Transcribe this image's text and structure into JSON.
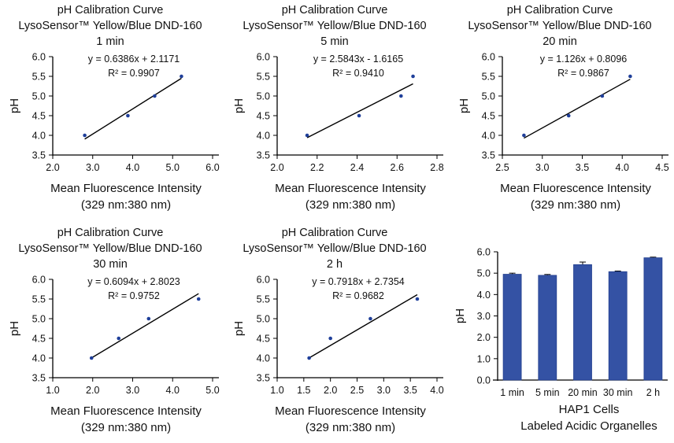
{
  "colors": {
    "point": "#1f3f9a",
    "bar": "#3452a4",
    "bar_edge": "#24408f",
    "line": "#000000"
  },
  "chart_data": [
    {
      "type": "scatter",
      "title": [
        "pH Calibration Curve",
        "LysoSensor™ Yellow/Blue DND-160",
        "1 min"
      ],
      "xlabel": [
        "Mean Fluorescence Intensity",
        "(329 nm:380 nm)"
      ],
      "ylabel": "pH",
      "xlim": [
        2.0,
        6.0
      ],
      "xticks": [
        "2.0",
        "3.0",
        "4.0",
        "5.0",
        "6.0"
      ],
      "ylim": [
        3.5,
        6.0
      ],
      "yticks": [
        "3.5",
        "4.0",
        "4.5",
        "5.0",
        "5.5",
        "6.0"
      ],
      "x": [
        2.8,
        3.88,
        4.55,
        5.22
      ],
      "y": [
        4.0,
        4.5,
        5.0,
        5.5
      ],
      "fit": {
        "slope": 0.6386,
        "intercept": 2.1171,
        "equation": "y = 0.6386x + 2.1171",
        "r2": "R² = 0.9907"
      }
    },
    {
      "type": "scatter",
      "title": [
        "pH Calibration Curve",
        "LysoSensor™ Yellow/Blue DND-160",
        "5 min"
      ],
      "xlabel": [
        "Mean Fluorescence Intensity",
        "(329 nm:380 nm)"
      ],
      "ylabel": "pH",
      "xlim": [
        2.0,
        2.8
      ],
      "xticks": [
        "2.0",
        "2.2",
        "2.4",
        "2.6",
        "2.8"
      ],
      "ylim": [
        3.5,
        6.0
      ],
      "yticks": [
        "3.5",
        "4.0",
        "4.5",
        "5.0",
        "5.5",
        "6.0"
      ],
      "x": [
        2.15,
        2.41,
        2.62,
        2.68
      ],
      "y": [
        4.0,
        4.5,
        5.0,
        5.5
      ],
      "fit": {
        "slope": 2.5843,
        "intercept": -1.6165,
        "equation": "y = 2.5843x - 1.6165",
        "r2": "R² = 0.9410"
      }
    },
    {
      "type": "scatter",
      "title": [
        "pH Calibration Curve",
        "LysoSensor™ Yellow/Blue DND-160",
        "20 min"
      ],
      "xlabel": [
        "Mean Fluorescence Intensity",
        "(329 nm:380 nm)"
      ],
      "ylabel": "pH",
      "xlim": [
        2.5,
        4.5
      ],
      "xticks": [
        "2.5",
        "3.0",
        "3.5",
        "4.0",
        "4.5"
      ],
      "ylim": [
        3.5,
        6.0
      ],
      "yticks": [
        "3.5",
        "4.0",
        "4.5",
        "5.0",
        "5.5",
        "6.0"
      ],
      "x": [
        2.77,
        3.33,
        3.75,
        4.1
      ],
      "y": [
        4.0,
        4.5,
        5.0,
        5.5
      ],
      "fit": {
        "slope": 1.126,
        "intercept": 0.8096,
        "equation": "y = 1.126x + 0.8096",
        "r2": "R² = 0.9867"
      }
    },
    {
      "type": "scatter",
      "title": [
        "pH Calibration Curve",
        "LysoSensor™ Yellow/Blue DND-160",
        "30 min"
      ],
      "xlabel": [
        "Mean Fluorescence Intensity",
        "(329 nm:380 nm)"
      ],
      "ylabel": "pH",
      "xlim": [
        1.0,
        5.0
      ],
      "xticks": [
        "1.0",
        "2.0",
        "3.0",
        "4.0",
        "5.0"
      ],
      "ylim": [
        3.5,
        6.0
      ],
      "yticks": [
        "3.5",
        "4.0",
        "4.5",
        "5.0",
        "5.5",
        "6.0"
      ],
      "x": [
        1.97,
        2.65,
        3.4,
        4.65
      ],
      "y": [
        4.0,
        4.5,
        5.0,
        5.5
      ],
      "fit": {
        "slope": 0.6094,
        "intercept": 2.8023,
        "equation": "y = 0.6094x + 2.8023",
        "r2": "R² = 0.9752"
      }
    },
    {
      "type": "scatter",
      "title": [
        "pH Calibration Curve",
        "LysoSensor™ Yellow/Blue DND-160",
        "2 h"
      ],
      "xlabel": [
        "Mean Fluorescence Intensity",
        "(329 nm:380 nm)"
      ],
      "ylabel": "pH",
      "xlim": [
        1.0,
        4.0
      ],
      "xticks": [
        "1.0",
        "1.5",
        "2.0",
        "2.5",
        "3.0",
        "3.5",
        "4.0"
      ],
      "ylim": [
        3.5,
        6.0
      ],
      "yticks": [
        "3.5",
        "4.0",
        "4.5",
        "5.0",
        "5.5",
        "6.0"
      ],
      "x": [
        1.6,
        2.0,
        2.75,
        3.63
      ],
      "y": [
        4.0,
        4.5,
        5.0,
        5.5
      ],
      "fit": {
        "slope": 0.7918,
        "intercept": 2.7354,
        "equation": "y = 0.7918x + 2.7354",
        "r2": "R² = 0.9682"
      }
    },
    {
      "type": "bar",
      "title": [],
      "xlabel": [
        "HAP1 Cells",
        "Labeled Acidic Organelles"
      ],
      "ylabel": "pH",
      "categories": [
        "1 min",
        "5 min",
        "20 min",
        "30 min",
        "2 h"
      ],
      "values": [
        4.95,
        4.9,
        5.4,
        5.07,
        5.72
      ],
      "errors": [
        0.05,
        0.04,
        0.12,
        0.03,
        0.03
      ],
      "ylim": [
        0,
        6.0
      ],
      "yticks": [
        "0.0",
        "1.0",
        "2.0",
        "3.0",
        "4.0",
        "5.0",
        "6.0"
      ]
    }
  ]
}
